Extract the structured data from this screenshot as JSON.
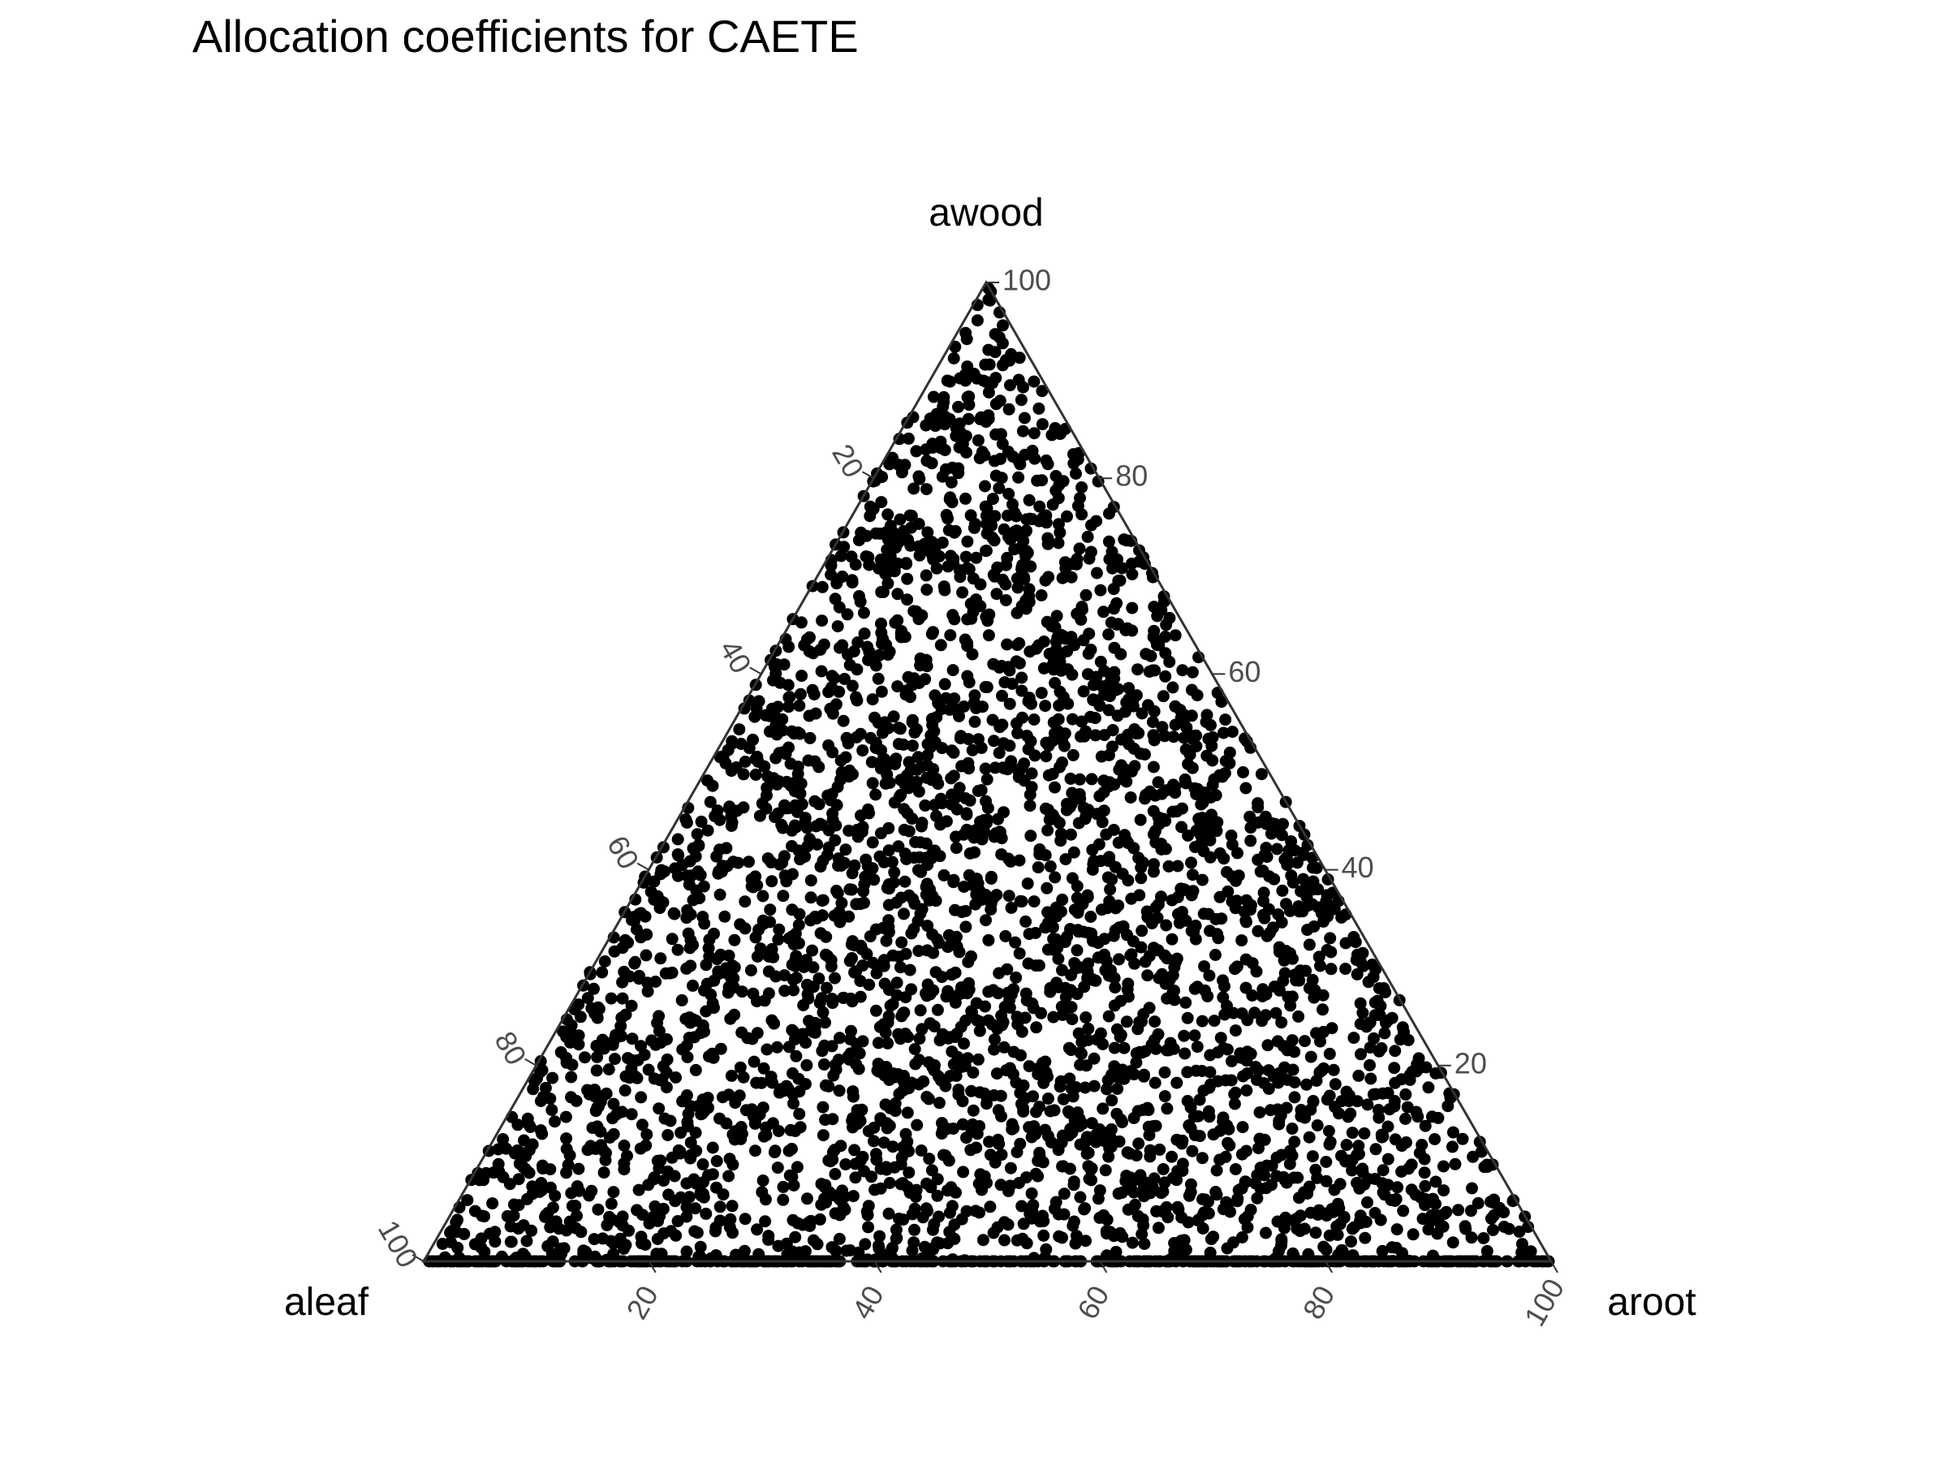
{
  "chart_data": {
    "type": "scatter",
    "subtype": "ternary",
    "title": "Allocation coefficients for CAETE",
    "axes": {
      "top": "awood",
      "left": "aleaf",
      "right": "aroot"
    },
    "ticks": {
      "aleaf": [
        "20",
        "40",
        "60",
        "80",
        "100"
      ],
      "awood": [
        "20",
        "40",
        "60",
        "80",
        "100"
      ],
      "aroot": [
        "20",
        "40",
        "60",
        "80",
        "100"
      ]
    },
    "range": [
      0,
      100
    ],
    "point_color": "#000000",
    "line_color": "#333333",
    "tick_color": "#4d4d4d",
    "grid": false,
    "n_points": 4000,
    "distribution": "uniform over simplex; dense band along awood = 0 edge",
    "legend": "none"
  }
}
